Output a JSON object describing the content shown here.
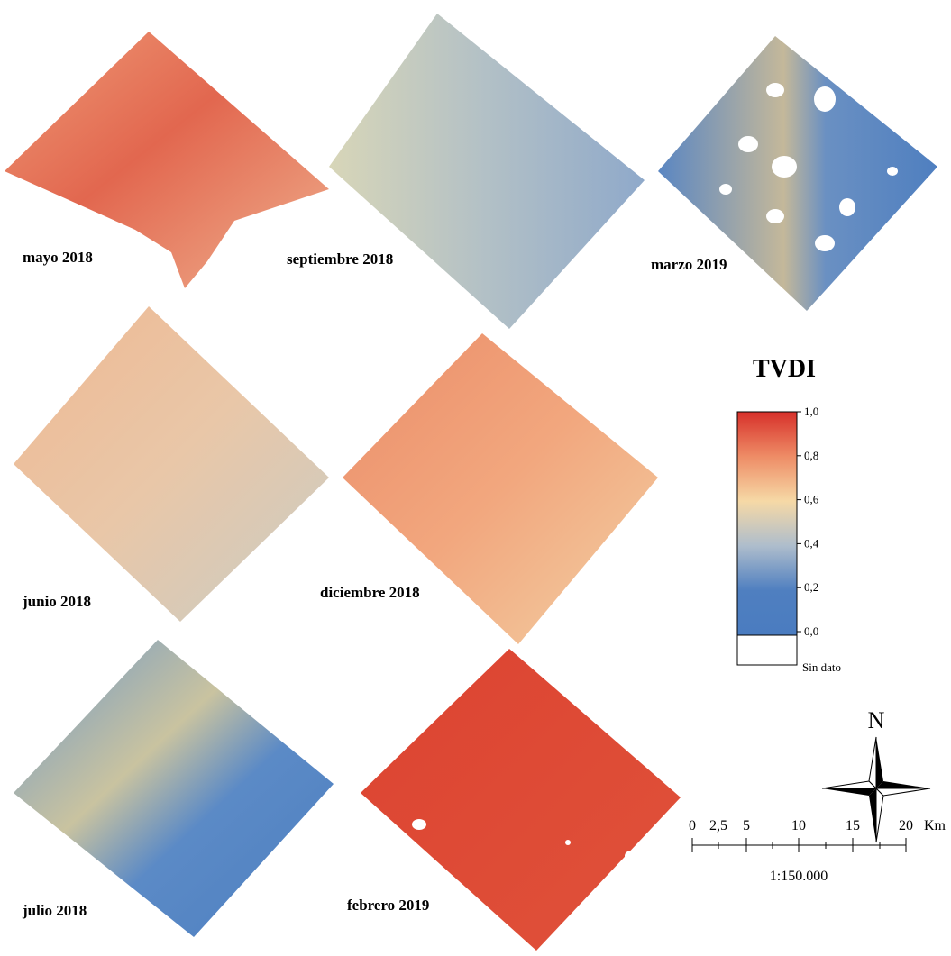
{
  "panels": [
    {
      "label": "mayo 2018"
    },
    {
      "label": "septiembre 2018"
    },
    {
      "label": "marzo 2019"
    },
    {
      "label": "junio 2018"
    },
    {
      "label": "diciembre 2018"
    },
    {
      "label": "julio 2018"
    },
    {
      "label": "febrero 2019"
    }
  ],
  "legend": {
    "title": "TVDI",
    "ticks": [
      "1,0",
      "0,8",
      "0,6",
      "0,4",
      "0,2",
      "0,0"
    ],
    "no_data": "Sin dato"
  },
  "north": "N",
  "scale": {
    "ticks": [
      "0",
      "2,5",
      "5",
      "10",
      "15",
      "20"
    ],
    "unit": "Km",
    "ratio": "1:150.000"
  }
}
